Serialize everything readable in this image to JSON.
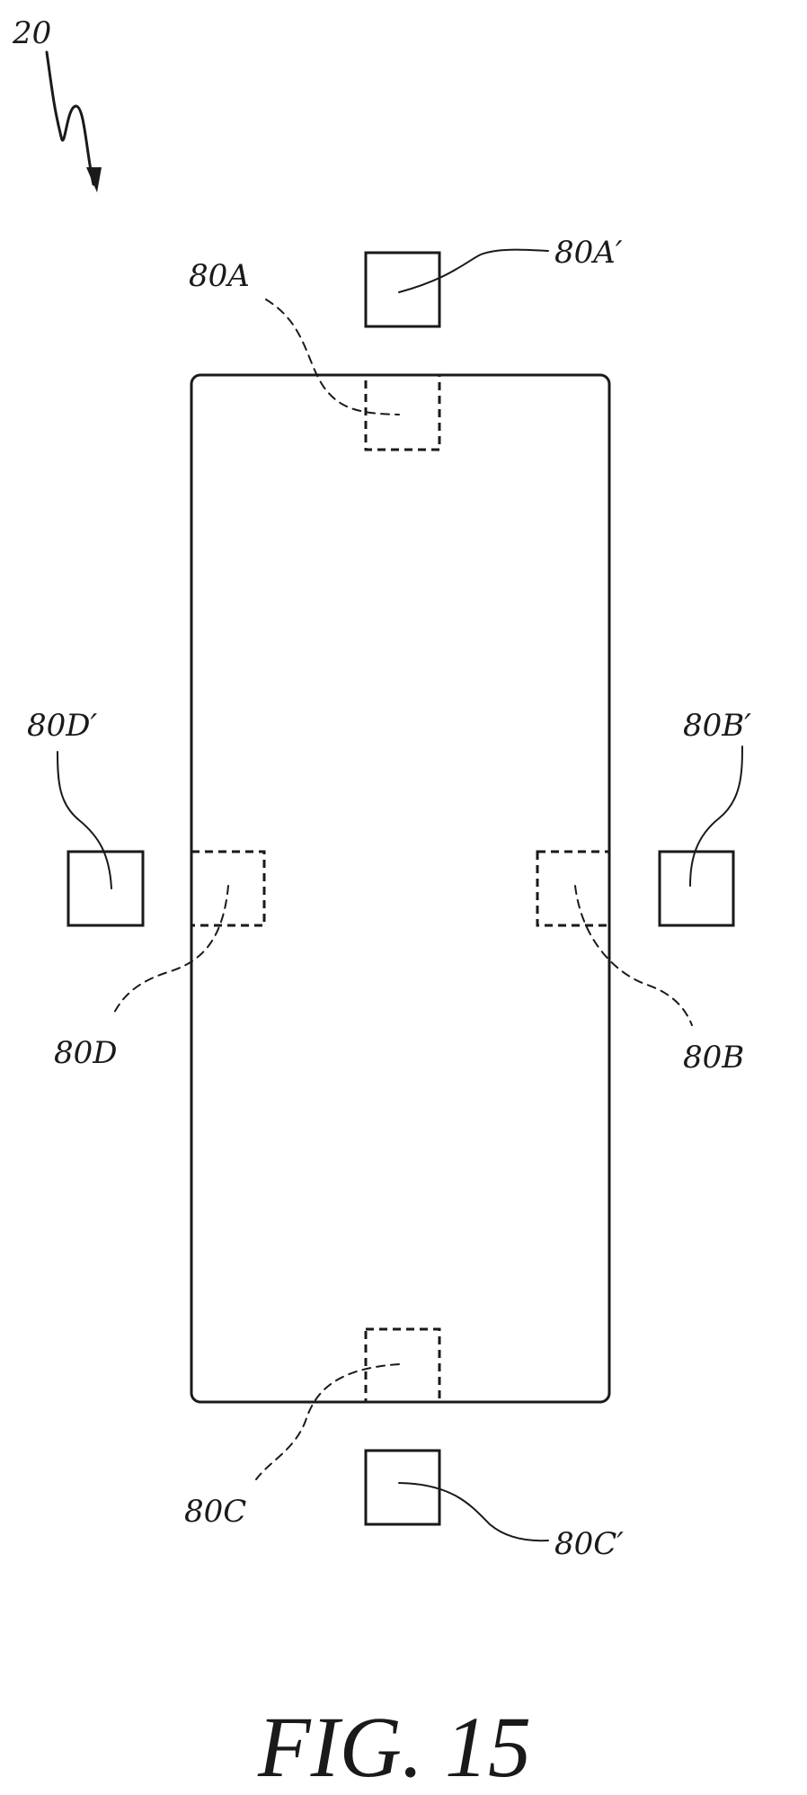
{
  "figure": {
    "caption": "FIG. 15",
    "overall_ref": "20"
  },
  "labels": {
    "sensor_a_inner": "80A",
    "sensor_a_outer": "80A′",
    "sensor_b_inner": "80B",
    "sensor_b_outer": "80B′",
    "sensor_c_inner": "80C",
    "sensor_c_outer": "80C′",
    "sensor_d_inner": "80D",
    "sensor_d_outer": "80D′"
  }
}
